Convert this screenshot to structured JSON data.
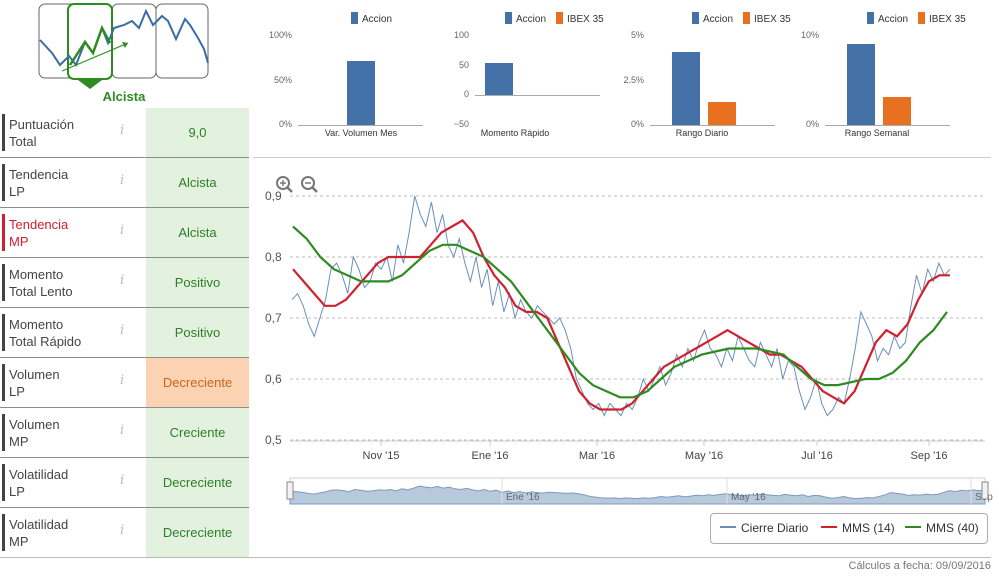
{
  "trend_icon": {
    "label": "Alcista",
    "green": "#2e8b22",
    "line_color": "#3a6da4"
  },
  "score_table": {
    "rows": [
      {
        "label1": "Puntuación",
        "label2": "Total",
        "info": "i",
        "value": "9,0",
        "status": "good"
      },
      {
        "label1": "Tendencia",
        "label2": "LP",
        "info": "i",
        "value": "Alcista",
        "status": "good"
      },
      {
        "label1": "Tendencia",
        "label2": "MP",
        "info": "i",
        "value": "Alcista",
        "status": "good",
        "active": true
      },
      {
        "label1": "Momento",
        "label2": "Total Lento",
        "info": "i",
        "value": "Positivo",
        "status": "good"
      },
      {
        "label1": "Momento",
        "label2": "Total Rápido",
        "info": "i",
        "value": "Positivo",
        "status": "good"
      },
      {
        "label1": "Volumen",
        "label2": "LP",
        "info": "i",
        "value": "Decreciente",
        "status": "warn"
      },
      {
        "label1": "Volumen",
        "label2": "MP",
        "info": "i",
        "value": "Creciente",
        "status": "good"
      },
      {
        "label1": "Volatilidad",
        "label2": "LP",
        "info": "i",
        "value": "Decreciente",
        "status": "good"
      },
      {
        "label1": "Volatilidad",
        "label2": "MP",
        "info": "i",
        "value": "Decreciente",
        "status": "good"
      }
    ]
  },
  "colors": {
    "accion": "#4472a8",
    "ibex": "#e8711f",
    "mms14": "#d0202e",
    "mms40": "#2e8b22",
    "cierre": "#6b8fb8"
  },
  "legend_names": {
    "accion": "Accion",
    "ibex": "IBEX 35"
  },
  "chart_data": [
    {
      "type": "bar",
      "title": "Var. Volumen Mes",
      "series": [
        {
          "name": "Accion",
          "values": [
            72
          ]
        }
      ],
      "yticks": [
        "100%",
        "50%",
        "0%"
      ],
      "ylim": [
        0,
        100
      ]
    },
    {
      "type": "bar",
      "title": "Momento Rápido",
      "series": [
        {
          "name": "Accion",
          "values": [
            55
          ]
        },
        {
          "name": "IBEX 35",
          "values": [
            0
          ]
        }
      ],
      "yticks": [
        "100",
        "50",
        "0",
        "−50"
      ],
      "ylim": [
        -50,
        100
      ]
    },
    {
      "type": "bar",
      "title": "Rango Diario",
      "series": [
        {
          "name": "Accion",
          "values": [
            4.1
          ]
        },
        {
          "name": "IBEX 35",
          "values": [
            1.3
          ]
        }
      ],
      "yticks": [
        "5%",
        "2.5%",
        "0%"
      ],
      "ylim": [
        0,
        5
      ]
    },
    {
      "type": "bar",
      "title": "Rango Semanal",
      "series": [
        {
          "name": "Accion",
          "values": [
            9.1
          ]
        },
        {
          "name": "IBEX 35",
          "values": [
            3.1
          ]
        }
      ],
      "yticks": [
        "10%",
        "0%"
      ],
      "ylim": [
        0,
        10
      ]
    },
    {
      "type": "line",
      "title": "",
      "ylim": [
        0.5,
        0.9
      ],
      "yticks": [
        "0,9",
        "0,8",
        "0,7",
        "0,6",
        "0,5"
      ],
      "xticks": [
        "Nov '15",
        "Ene '16",
        "Mar '16",
        "May '16",
        "Jul '16",
        "Sep '16"
      ],
      "series": [
        {
          "name": "Cierre Diario",
          "values": [
            0.73,
            0.74,
            0.72,
            0.69,
            0.67,
            0.7,
            0.73,
            0.78,
            0.79,
            0.77,
            0.74,
            0.8,
            0.78,
            0.75,
            0.76,
            0.79,
            0.78,
            0.8,
            0.76,
            0.82,
            0.79,
            0.84,
            0.9,
            0.87,
            0.85,
            0.89,
            0.84,
            0.87,
            0.82,
            0.8,
            0.83,
            0.79,
            0.76,
            0.8,
            0.75,
            0.78,
            0.72,
            0.76,
            0.71,
            0.74,
            0.7,
            0.73,
            0.71,
            0.7,
            0.72,
            0.71,
            0.7,
            0.69,
            0.7,
            0.68,
            0.65,
            0.6,
            0.58,
            0.56,
            0.55,
            0.56,
            0.54,
            0.56,
            0.55,
            0.54,
            0.56,
            0.55,
            0.57,
            0.6,
            0.58,
            0.6,
            0.62,
            0.59,
            0.61,
            0.64,
            0.62,
            0.65,
            0.63,
            0.66,
            0.68,
            0.65,
            0.64,
            0.62,
            0.65,
            0.63,
            0.67,
            0.65,
            0.63,
            0.62,
            0.66,
            0.64,
            0.62,
            0.65,
            0.6,
            0.63,
            0.62,
            0.58,
            0.55,
            0.57,
            0.6,
            0.56,
            0.54,
            0.55,
            0.57,
            0.56,
            0.6,
            0.65,
            0.71,
            0.69,
            0.67,
            0.63,
            0.65,
            0.64,
            0.67,
            0.65,
            0.66,
            0.72,
            0.77,
            0.74,
            0.78,
            0.76,
            0.79,
            0.77,
            0.78
          ]
        },
        {
          "name": "MMS (14)",
          "values": [
            0.78,
            0.76,
            0.74,
            0.72,
            0.72,
            0.73,
            0.75,
            0.77,
            0.79,
            0.8,
            0.8,
            0.8,
            0.8,
            0.82,
            0.84,
            0.85,
            0.86,
            0.84,
            0.8,
            0.77,
            0.75,
            0.72,
            0.71,
            0.71,
            0.7,
            0.66,
            0.62,
            0.58,
            0.56,
            0.55,
            0.55,
            0.55,
            0.56,
            0.58,
            0.6,
            0.62,
            0.63,
            0.64,
            0.65,
            0.66,
            0.67,
            0.68,
            0.67,
            0.66,
            0.65,
            0.64,
            0.64,
            0.63,
            0.62,
            0.6,
            0.58,
            0.57,
            0.56,
            0.58,
            0.62,
            0.66,
            0.68,
            0.67,
            0.69,
            0.73,
            0.76,
            0.77,
            0.77
          ]
        },
        {
          "name": "MMS (40)",
          "values": [
            0.85,
            0.83,
            0.8,
            0.78,
            0.77,
            0.76,
            0.76,
            0.76,
            0.77,
            0.79,
            0.81,
            0.82,
            0.82,
            0.81,
            0.8,
            0.78,
            0.76,
            0.73,
            0.7,
            0.67,
            0.64,
            0.61,
            0.59,
            0.58,
            0.57,
            0.57,
            0.58,
            0.6,
            0.62,
            0.63,
            0.64,
            0.645,
            0.65,
            0.65,
            0.65,
            0.645,
            0.64,
            0.62,
            0.6,
            0.59,
            0.59,
            0.595,
            0.6,
            0.6,
            0.61,
            0.63,
            0.66,
            0.68,
            0.71
          ]
        }
      ]
    }
  ],
  "navigator": {
    "labels": [
      "Ene '16",
      "May '16",
      "Sep"
    ]
  },
  "main_legend": [
    {
      "name": "Cierre Diario",
      "key": "cierre"
    },
    {
      "name": "MMS (14)",
      "key": "mms14"
    },
    {
      "name": "MMS (40)",
      "key": "mms40"
    }
  ],
  "footer": {
    "text": "Cálculos a fecha: 09/09/2016"
  }
}
